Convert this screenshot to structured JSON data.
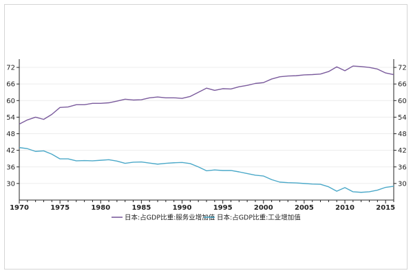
{
  "chart_data": {
    "type": "line",
    "title": "",
    "xlabel": "",
    "ylabel": "",
    "xlim": [
      1970,
      2016
    ],
    "ylim": [
      24,
      75
    ],
    "x_ticks": [
      "1970",
      "1975",
      "1980",
      "1985",
      "1990",
      "1995",
      "2000",
      "2005",
      "2010",
      "2015"
    ],
    "y_ticks": [
      "30",
      "36",
      "42",
      "48",
      "54",
      "60",
      "66",
      "72"
    ],
    "grid": true,
    "legend": "bottom",
    "x": [
      1970,
      1971,
      1972,
      1973,
      1974,
      1975,
      1976,
      1977,
      1978,
      1979,
      1980,
      1981,
      1982,
      1983,
      1984,
      1985,
      1986,
      1987,
      1988,
      1989,
      1990,
      1991,
      1992,
      1993,
      1994,
      1995,
      1996,
      1997,
      1998,
      1999,
      2000,
      2001,
      2002,
      2003,
      2004,
      2005,
      2006,
      2007,
      2008,
      2009,
      2010,
      2011,
      2012,
      2013,
      2014,
      2015,
      2016
    ],
    "series": [
      {
        "name": "日本:占GDP比重:服务业增加值",
        "color": "#7a5a9c",
        "values": [
          51.5,
          53,
          54,
          53.2,
          55,
          57.5,
          57.7,
          58.5,
          58.5,
          59,
          59,
          59.2,
          59.8,
          60.5,
          60.2,
          60.3,
          61,
          61.3,
          61,
          61,
          60.8,
          61.5,
          63,
          64.5,
          63.7,
          64.3,
          64.2,
          65,
          65.5,
          66.2,
          66.5,
          67.8,
          68.6,
          68.9,
          69,
          69.3,
          69.4,
          69.6,
          70.5,
          72.2,
          70.8,
          72.5,
          72.3,
          72,
          71.4,
          70,
          69.4
        ]
      },
      {
        "name": "日本:占GDP比重:工业增加值",
        "color": "#4aa8c8",
        "values": [
          43,
          42.6,
          41.6,
          41.8,
          40.6,
          38.9,
          38.9,
          38.2,
          38.3,
          38.2,
          38.4,
          38.6,
          38.1,
          37.3,
          37.7,
          37.8,
          37.4,
          37,
          37.3,
          37.5,
          37.6,
          37.2,
          36,
          34.6,
          34.9,
          34.7,
          34.7,
          34.2,
          33.6,
          33,
          32.7,
          31.4,
          30.5,
          30.3,
          30.2,
          30,
          29.8,
          29.7,
          28.8,
          27.2,
          28.5,
          27,
          26.8,
          27,
          27.6,
          28.6,
          29
        ]
      }
    ]
  }
}
